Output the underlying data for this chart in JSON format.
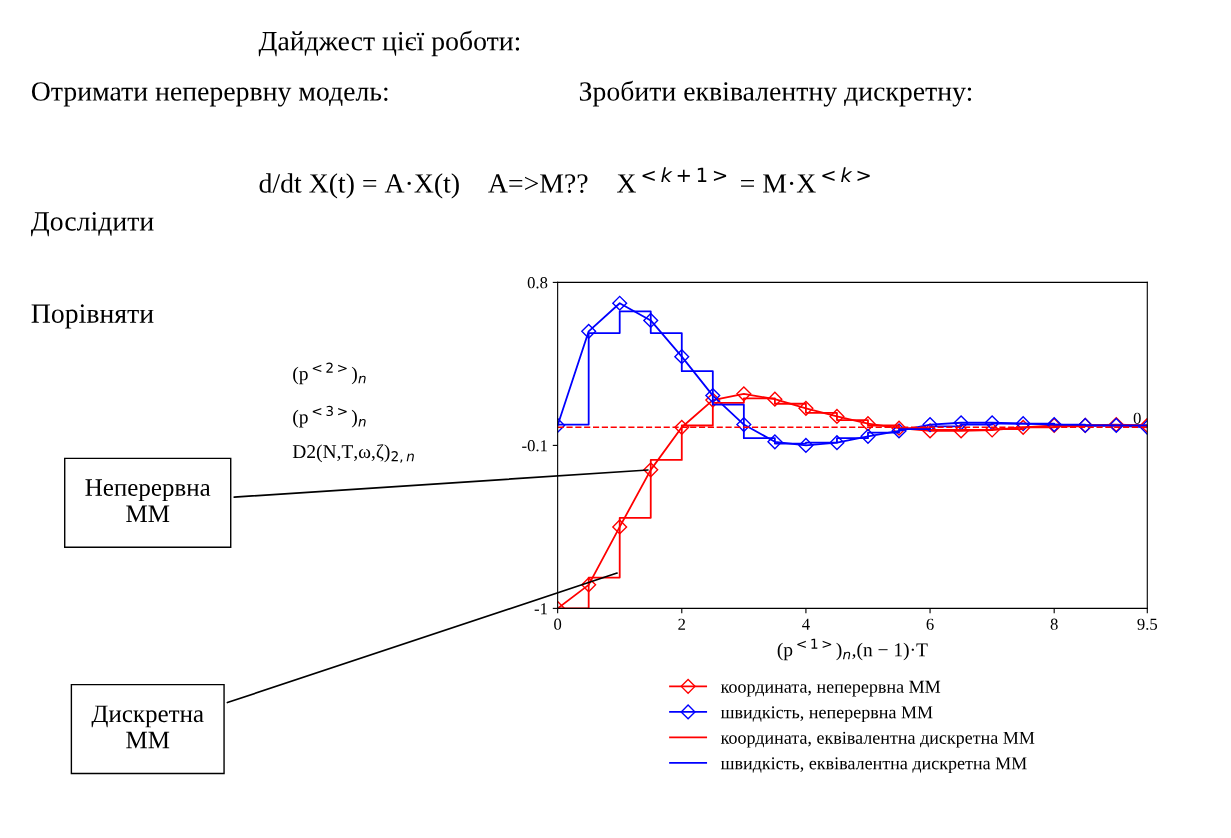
{
  "chart_data": {
    "type": "line",
    "title": "Дайджест цієї роботи:",
    "annotations": [
      "Отримати неперервну модель:",
      "Зробити еквівалентну дискретну:",
      "d/dt X(t) = A·X(t)    A=>M??    X$^{<k+1>}$ = M·X$^{<k>}$",
      "Дослідити",
      "Порівняти",
      {
        "text": "Неперервна\nММ",
        "x": 1.5,
        "y": -0.235
      },
      {
        "text": "Дискретна\nММ",
        "x": 1,
        "y": -0.8
      }
    ],
    "xlabel": "(p$^{<1>}$)$_{n}$,(n − 1)·T",
    "ylabel": "(p$^{<2>}$)$_{n}$\n(p$^{<3>}$)$_{n}$\nD2(N,T,ω,ζ)$_{2,n}$",
    "x": [
      0,
      0.5,
      1,
      1.5,
      2,
      2.5,
      3,
      3.5,
      4,
      4.5,
      5,
      5.5,
      6,
      6.5,
      7,
      7.5,
      8,
      8.5,
      9,
      9.5
    ],
    "series": [
      {
        "name": "координата, неперервна ММ",
        "color": "#ff0000",
        "marker": "diamond",
        "values": [
          -1,
          -0.87,
          -0.55,
          -0.235,
          0,
          0.15,
          0.185,
          0.155,
          0.105,
          0.06,
          0.02,
          -0.005,
          -0.02,
          -0.02,
          -0.015,
          0,
          0.01,
          0.01,
          0.015,
          0.01
        ]
      },
      {
        "name": "швидкість, неперервна ММ",
        "color": "#0000ff",
        "marker": "diamond",
        "values": [
          0.01,
          0.53,
          0.685,
          0.59,
          0.39,
          0.175,
          0.015,
          -0.08,
          -0.1,
          -0.085,
          -0.05,
          -0.02,
          0.015,
          0.025,
          0.025,
          0.02,
          0.015,
          0.01,
          0.01,
          0
        ]
      },
      {
        "name": "координата, еквівалентна дискретна ММ",
        "color": "#ff0000",
        "type": "step",
        "values": [
          -1,
          -0.83,
          -0.5,
          -0.18,
          0.01,
          0.135,
          0.16,
          0.13,
          0.08,
          0.04,
          0.01,
          -0.005,
          -0.015,
          -0.015,
          -0.01,
          0,
          0.005,
          0.01,
          0.01,
          0.01
        ]
      },
      {
        "name": "швидкість, еквівалентна дискретна ММ",
        "color": "#0000ff",
        "type": "step",
        "values": [
          0.015,
          0.52,
          0.64,
          0.52,
          0.31,
          0.125,
          -0.06,
          -0.09,
          -0.085,
          -0.06,
          -0.03,
          -0.01,
          0.005,
          0.015,
          0.02,
          0.02,
          0.015,
          0.01,
          0.01,
          0.005
        ]
      }
    ],
    "xlim": [
      0,
      9.5
    ],
    "ylim": [
      -1,
      0.8
    ],
    "xticks": [
      0,
      2,
      4,
      6,
      8,
      9.5
    ],
    "yticks": [
      -1,
      -0.1,
      0.8
    ],
    "ref_lines": [
      {
        "axis": "y",
        "value": 0,
        "label": "0",
        "color": "#ff0000",
        "line_style": "dashed"
      }
    ],
    "legend": "bottom",
    "grid": false
  }
}
